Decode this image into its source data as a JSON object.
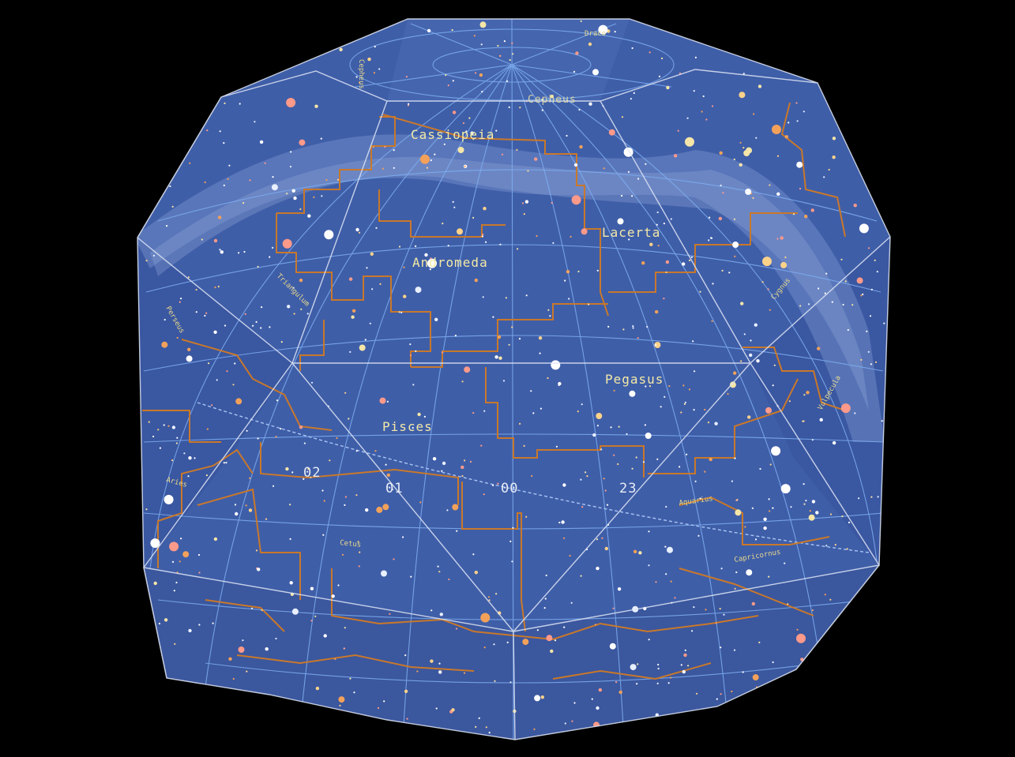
{
  "map": {
    "constellation_labels": [
      {
        "id": "cassiopeia",
        "text": "Cassiopeia"
      },
      {
        "id": "lacerta",
        "text": "Lacerta"
      },
      {
        "id": "andromeda",
        "text": "Andromeda"
      },
      {
        "id": "pegasus",
        "text": "Pegasus"
      },
      {
        "id": "pisces",
        "text": "Pisces"
      },
      {
        "id": "cepheus",
        "text": "Cepheus"
      }
    ],
    "hour_labels": [
      {
        "id": "h02",
        "text": "02"
      },
      {
        "id": "h01",
        "text": "01"
      },
      {
        "id": "h00",
        "text": "00"
      },
      {
        "id": "h23",
        "text": "23"
      }
    ],
    "colors": {
      "background": "#000000",
      "sky": "#3f5ea8",
      "milky_way": "#6f8bc9",
      "grid": "#7eaef0",
      "boundary": "#c9782a",
      "facet_edge": "#dfe6f5",
      "label": "#f3e9a6"
    }
  }
}
